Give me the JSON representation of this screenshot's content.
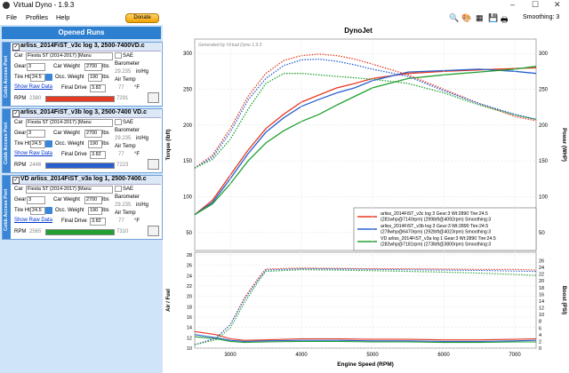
{
  "window": {
    "title": "Virtual Dyno - 1.9.3"
  },
  "menu": {
    "items": [
      "File",
      "Profiles",
      "Help"
    ],
    "donate": "Donate"
  },
  "runs_panel": {
    "header": "Opened Runs",
    "side_tab": "Cobb Access Port",
    "runs": [
      {
        "name": "arliss_2014FiST_v3c log 3, 2500-7400VD.c",
        "car": "Fiesta ST (2014-2017) [Manu",
        "sae": "SAE",
        "gear": "3",
        "car_weight_label": "Car Weight",
        "car_weight": "2700",
        "lbs": "lbs",
        "occ_weight_label": "Occ. Weight",
        "occ_weight": "190",
        "tire_label": "Tire Ht",
        "tire": "24.5",
        "barometer_label": "Barometer",
        "barometer": "29.235",
        "baro_unit": "in/Hg",
        "air_temp_label": "Air Temp",
        "air_temp": "77",
        "temp_unit": "°F",
        "final_drive_label": "Final Drive",
        "final_drive": "3.82",
        "show_raw": "Show Raw Data",
        "rpm_label": "RPM",
        "rpm_min": "2380",
        "rpm_max": "7291",
        "color": "#e53a22"
      },
      {
        "name": "arliss_2014FiST_v3b log 3, 2500-7400 VD.c",
        "car": "Fiesta ST (2014-2017) [Manu",
        "sae": "SAE",
        "gear": "3",
        "car_weight_label": "Car Weight",
        "car_weight": "2700",
        "lbs": "lbs",
        "occ_weight_label": "Occ. Weight",
        "occ_weight": "190",
        "tire_label": "Tire Ht",
        "tire": "24.5",
        "barometer_label": "Barometer",
        "barometer": "29.235",
        "baro_unit": "in/Hg",
        "air_temp_label": "Air Temp",
        "air_temp": "77",
        "temp_unit": "°F",
        "final_drive_label": "Final Drive",
        "final_drive": "3.82",
        "show_raw": "Show Raw Data",
        "rpm_label": "RPM",
        "rpm_min": "2446",
        "rpm_max": "7223",
        "color": "#2860d0"
      },
      {
        "name": "VD arliss_2014FiST_v3a log 1, 2500-7400.c",
        "car": "Fiesta ST (2014-2017) [Manu",
        "sae": "SAE",
        "gear": "3",
        "car_weight_label": "Car Weight",
        "car_weight": "2700",
        "lbs": "lbs",
        "occ_weight_label": "Occ. Weight",
        "occ_weight": "190",
        "tire_label": "Tire Ht",
        "tire": "24.5",
        "barometer_label": "Barometer",
        "barometer": "29.235",
        "baro_unit": "in/Hg",
        "air_temp_label": "Air Temp",
        "air_temp": "77",
        "temp_unit": "°F",
        "final_drive_label": "Final Drive",
        "final_drive": "3.82",
        "show_raw": "Show Raw Data",
        "rpm_label": "RPM",
        "rpm_min": "2565",
        "rpm_max": "7310",
        "color": "#20a030"
      }
    ]
  },
  "toolbar": {
    "icons": [
      "zoom-icon",
      "palette-icon",
      "grid-icon",
      "save-icon",
      "print-icon"
    ],
    "smoothing": "Smoothing: 3"
  },
  "chart_data": [
    {
      "type": "line",
      "title": "DynoJet",
      "watermark": "Generated by Virtual Dyno 1.9.3",
      "ylabel": "Torque (lbft)",
      "y2label": "Power (WHP)",
      "xlim": [
        2500,
        7300
      ],
      "ylim": [
        25,
        320
      ],
      "yticks": [
        50,
        100,
        150,
        200,
        250,
        300
      ],
      "y2ticks": [
        50,
        100,
        150,
        200,
        250,
        300
      ],
      "legend_position": "bottom-right",
      "series": [
        {
          "name": "arliss_2014FiST_v3c log 3 Gear:3 Wt:2890 Tire:24.5",
          "legend_line2": "(281whp@7140rpm) (299lbft@4092rpm) Smoothing:3",
          "metric": "power",
          "color": "#e53a22",
          "dashed": false,
          "x": [
            2500,
            2750,
            3000,
            3250,
            3500,
            3750,
            4000,
            4250,
            4500,
            4750,
            5000,
            5500,
            6000,
            6500,
            7000,
            7300
          ],
          "y": [
            75,
            95,
            130,
            165,
            195,
            215,
            232,
            242,
            252,
            258,
            265,
            272,
            275,
            277,
            279,
            280
          ]
        },
        {
          "name": "arliss_2014FiST_v3b log 3 Gear:3 Wt:2890 Tire:24.5",
          "legend_line2": "(278whp@6470rpm) (292lbft@4023rpm) Smoothing:3",
          "metric": "power",
          "color": "#2860d0",
          "dashed": false,
          "x": [
            2500,
            2750,
            3000,
            3250,
            3500,
            3750,
            4000,
            4250,
            4500,
            4750,
            5000,
            5500,
            6000,
            6500,
            7000,
            7300
          ],
          "y": [
            75,
            92,
            125,
            160,
            190,
            210,
            226,
            236,
            245,
            252,
            262,
            274,
            276,
            278,
            275,
            272
          ]
        },
        {
          "name": "VD arliss_2014FiST_v3a log 1 Gear:3 Wt:2890 Tire:24.5",
          "legend_line2": "(282whp@7181rpm) (273lbft@3800rpm) Smoothing:3",
          "metric": "power",
          "color": "#20a030",
          "dashed": false,
          "x": [
            2500,
            2750,
            3000,
            3250,
            3500,
            3750,
            4000,
            4250,
            4500,
            4750,
            5000,
            5500,
            6000,
            6500,
            7000,
            7300
          ],
          "y": [
            75,
            90,
            118,
            150,
            175,
            192,
            205,
            215,
            228,
            240,
            252,
            265,
            270,
            274,
            278,
            282
          ]
        },
        {
          "metric": "torque",
          "color": "#e53a22",
          "dashed": true,
          "x": [
            2500,
            2750,
            3000,
            3250,
            3500,
            3750,
            4000,
            4250,
            4500,
            4750,
            5000,
            5500,
            6000,
            6500,
            7000,
            7300
          ],
          "y": [
            140,
            158,
            195,
            240,
            272,
            290,
            297,
            299,
            297,
            292,
            285,
            270,
            250,
            230,
            212,
            206
          ]
        },
        {
          "metric": "torque",
          "color": "#2860d0",
          "dashed": true,
          "x": [
            2500,
            2750,
            3000,
            3250,
            3500,
            3750,
            4000,
            4250,
            4500,
            4750,
            5000,
            5500,
            6000,
            6500,
            7000,
            7300
          ],
          "y": [
            140,
            155,
            190,
            235,
            265,
            283,
            291,
            292,
            289,
            284,
            278,
            268,
            248,
            230,
            215,
            208
          ]
        },
        {
          "metric": "torque",
          "color": "#20a030",
          "dashed": true,
          "x": [
            2500,
            2750,
            3000,
            3250,
            3500,
            3750,
            4000,
            4250,
            4500,
            4750,
            5000,
            5500,
            6000,
            6500,
            7000,
            7300
          ],
          "y": [
            140,
            152,
            180,
            222,
            258,
            272,
            272,
            270,
            268,
            266,
            264,
            258,
            245,
            228,
            214,
            208
          ]
        }
      ]
    },
    {
      "type": "line",
      "xlabel": "Engine Speed (RPM)",
      "ylabel": "Air / Fuel",
      "y2label": "Boost (PSI)",
      "xlim": [
        2500,
        7300
      ],
      "ylim": [
        10,
        28.5
      ],
      "xticks": [
        3000,
        4000,
        5000,
        6000,
        7000
      ],
      "yticks": [
        10,
        12,
        14,
        16,
        18,
        20,
        22,
        24,
        26,
        28
      ],
      "y2ticks": [
        0,
        2,
        4,
        6,
        8,
        10,
        12,
        14,
        16,
        18,
        20,
        22,
        24,
        26
      ],
      "series": [
        {
          "metric": "air_fuel",
          "color": "#e53a22",
          "dashed": false,
          "x": [
            2500,
            2800,
            3000,
            3200,
            3500,
            4000,
            4500,
            5000,
            5500,
            6000,
            6500,
            7000,
            7300
          ],
          "y": [
            13.2,
            12.6,
            11.8,
            11.5,
            11.6,
            11.8,
            11.8,
            11.7,
            11.7,
            11.6,
            11.6,
            11.7,
            11.8
          ]
        },
        {
          "metric": "air_fuel",
          "color": "#2860d0",
          "dashed": false,
          "x": [
            2500,
            2800,
            3000,
            3200,
            3500,
            4000,
            4500,
            5000,
            5500,
            6000,
            6500,
            7000,
            7300
          ],
          "y": [
            12.6,
            12.0,
            11.5,
            11.3,
            11.4,
            11.5,
            11.5,
            11.4,
            11.4,
            11.3,
            11.3,
            11.4,
            11.5
          ]
        },
        {
          "metric": "air_fuel",
          "color": "#20a030",
          "dashed": false,
          "x": [
            2500,
            2800,
            3000,
            3200,
            3500,
            4000,
            4500,
            5000,
            5500,
            6000,
            6500,
            7000,
            7300
          ],
          "y": [
            12.2,
            11.8,
            11.3,
            11.1,
            11.2,
            11.3,
            11.3,
            11.2,
            11.2,
            11.1,
            11.1,
            11.2,
            11.2
          ]
        },
        {
          "metric": "boost",
          "color": "#e53a22",
          "dashed": true,
          "x": [
            2500,
            2800,
            3000,
            3200,
            3400,
            3500,
            4000,
            4500,
            5000,
            5500,
            6000,
            6500,
            7000,
            7300
          ],
          "y": [
            1,
            3,
            7,
            15,
            21,
            23.5,
            23.8,
            23.7,
            23.6,
            23.6,
            23.5,
            23.4,
            23.4,
            23.2
          ]
        },
        {
          "metric": "boost",
          "color": "#2860d0",
          "dashed": true,
          "x": [
            2500,
            2800,
            3000,
            3200,
            3400,
            3500,
            4000,
            4500,
            5000,
            5500,
            6000,
            6500,
            7000,
            7300
          ],
          "y": [
            1,
            3,
            7,
            14.5,
            20.5,
            23.2,
            23.6,
            23.5,
            23.4,
            23.3,
            23.2,
            23.1,
            22.9,
            22.8
          ]
        },
        {
          "metric": "boost",
          "color": "#20a030",
          "dashed": true,
          "x": [
            2500,
            2800,
            3000,
            3200,
            3400,
            3500,
            4000,
            4500,
            5000,
            5500,
            6000,
            6500,
            7000,
            7300
          ],
          "y": [
            1,
            2.5,
            6,
            13.5,
            20,
            22.8,
            23.3,
            23.2,
            23.0,
            22.8,
            22.6,
            22.3,
            21.9,
            21.6
          ]
        }
      ]
    }
  ]
}
